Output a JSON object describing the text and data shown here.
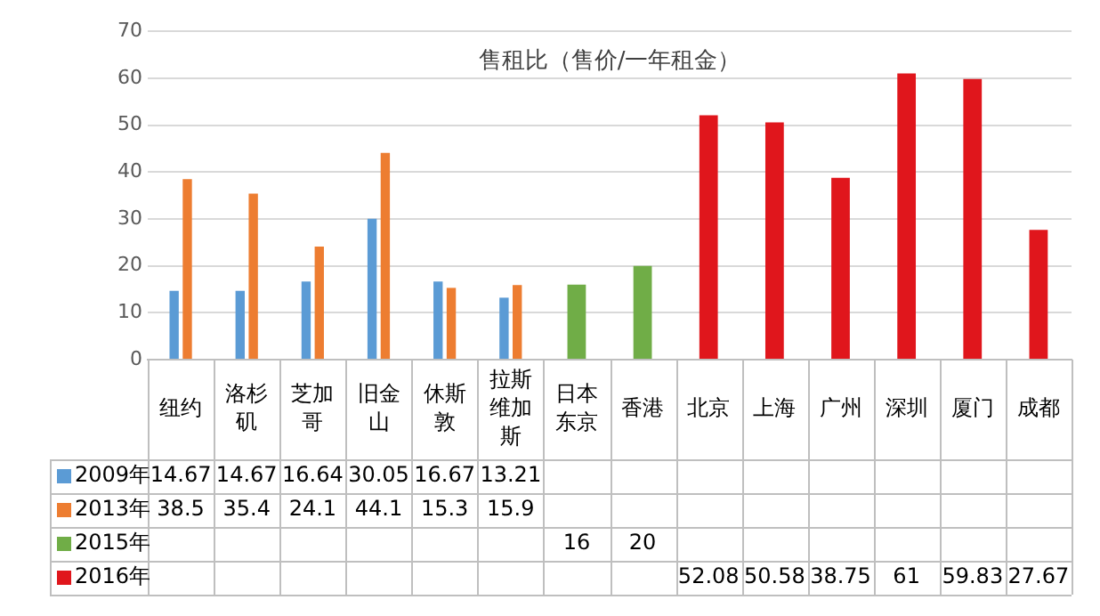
{
  "chart_data": {
    "type": "bar",
    "title": "售租比（售价/一年租金）",
    "categories": [
      "纽约",
      "洛杉矶",
      "芝加哥",
      "旧金山",
      "休斯敦",
      "拉斯维加斯",
      "日本东京",
      "香港",
      "北京",
      "上海",
      "广州",
      "深圳",
      "厦门",
      "成都"
    ],
    "series": [
      {
        "name": "2009年",
        "color": "#5b9bd5",
        "values": [
          14.67,
          14.67,
          16.64,
          30.05,
          16.67,
          13.21,
          null,
          null,
          null,
          null,
          null,
          null,
          null,
          null
        ]
      },
      {
        "name": "2013年",
        "color": "#ed7d31",
        "values": [
          38.5,
          35.4,
          24.1,
          44.1,
          15.3,
          15.9,
          null,
          null,
          null,
          null,
          null,
          null,
          null,
          null
        ]
      },
      {
        "name": "2015年",
        "color": "#70ad47",
        "values": [
          null,
          null,
          null,
          null,
          null,
          null,
          16,
          20,
          null,
          null,
          null,
          null,
          null,
          null
        ]
      },
      {
        "name": "2016年",
        "color": "#e0161c",
        "values": [
          null,
          null,
          null,
          null,
          null,
          null,
          null,
          null,
          52.08,
          50.58,
          38.75,
          61,
          59.83,
          27.67
        ]
      }
    ],
    "ylim": [
      0,
      70
    ],
    "yticks": [
      0,
      10,
      20,
      30,
      40,
      50,
      60,
      70
    ],
    "grid": "y",
    "legend": "bottom",
    "data_labels": true
  }
}
